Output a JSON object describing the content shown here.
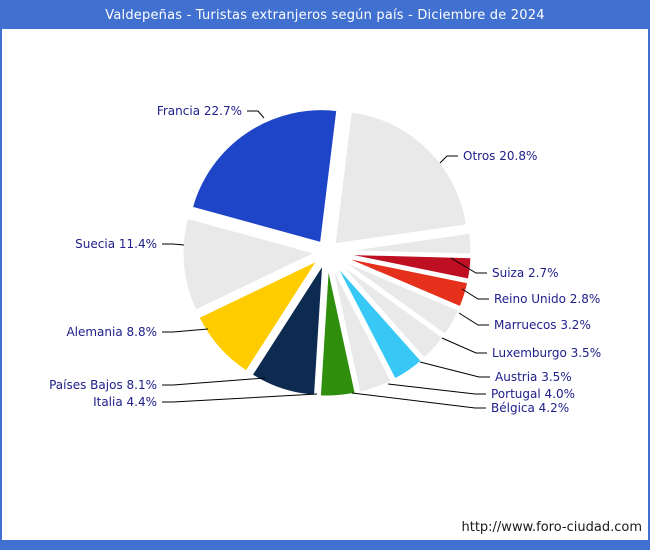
{
  "header": {
    "title": "Valdepeñas - Turistas extranjeros según país - Diciembre de 2024",
    "bg_color": "#4070D0",
    "text_color": "#FFFFFF"
  },
  "footer": {
    "url": "http://www.foro-ciudad.com"
  },
  "chart_data": {
    "type": "pie",
    "title": "Valdepeñas - Turistas extranjeros según país - Diciembre de 2024",
    "unit": "%",
    "legend_position": "callout-labels",
    "start_angle_deg": 7,
    "label_color": "#20208C",
    "leader_line_color": "#000000",
    "slices": [
      {
        "label": "Otros",
        "value": 20.8,
        "color": "#E9E9E9"
      },
      {
        "label": "Suiza",
        "value": 2.7,
        "color": "#E9E9E9"
      },
      {
        "label": "Reino Unido",
        "value": 2.8,
        "color": "#BE1022"
      },
      {
        "label": "Marruecos",
        "value": 3.2,
        "color": "#E5301C"
      },
      {
        "label": "Luxemburgo",
        "value": 3.5,
        "color": "#E9E9E9"
      },
      {
        "label": "Austria",
        "value": 3.5,
        "color": "#E9E9E9"
      },
      {
        "label": "Portugal",
        "value": 4.0,
        "color": "#38C8F6"
      },
      {
        "label": "Bélgica",
        "value": 4.2,
        "color": "#E9E9E9"
      },
      {
        "label": "Italia",
        "value": 4.4,
        "color": "#2F8F0D"
      },
      {
        "label": "Países Bajos",
        "value": 8.1,
        "color": "#0D2B50"
      },
      {
        "label": "Alemania",
        "value": 8.8,
        "color": "#FFCC00"
      },
      {
        "label": "Suecia",
        "value": 11.4,
        "color": "#E9E9E9"
      },
      {
        "label": "Francia",
        "value": 22.7,
        "color": "#1E44C8"
      }
    ]
  }
}
